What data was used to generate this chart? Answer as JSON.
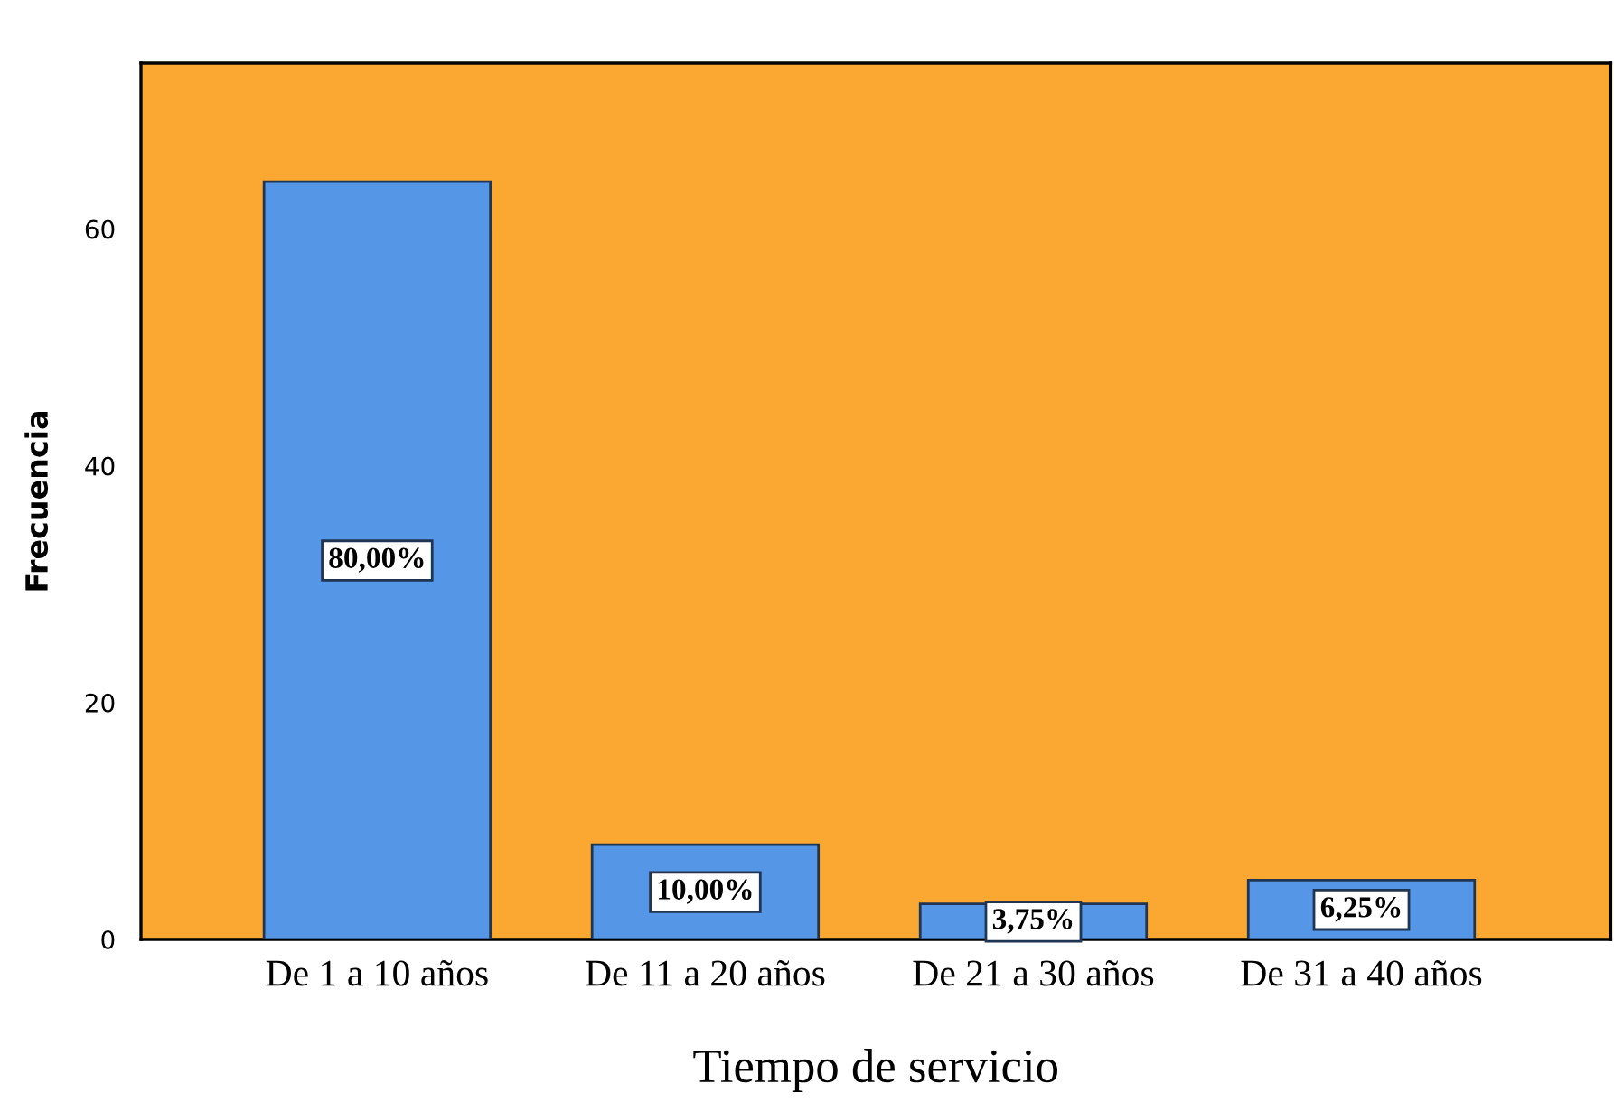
{
  "chart_data": {
    "type": "bar",
    "categories": [
      "De 1 a 10 años",
      "De 11 a 20 años",
      "De 21 a 30 años",
      "De 31 a 40 años"
    ],
    "values": [
      64,
      8,
      3,
      5
    ],
    "color": "#5596e6",
    "annotations": [
      "80,00%",
      "10,00%",
      "3,75%",
      "6,25%"
    ],
    "xlabel": "Tiempo de servicio",
    "ylabel": "Frecuencia",
    "ylim": [
      0,
      74
    ],
    "yticks": [
      0,
      20,
      40,
      60
    ]
  }
}
